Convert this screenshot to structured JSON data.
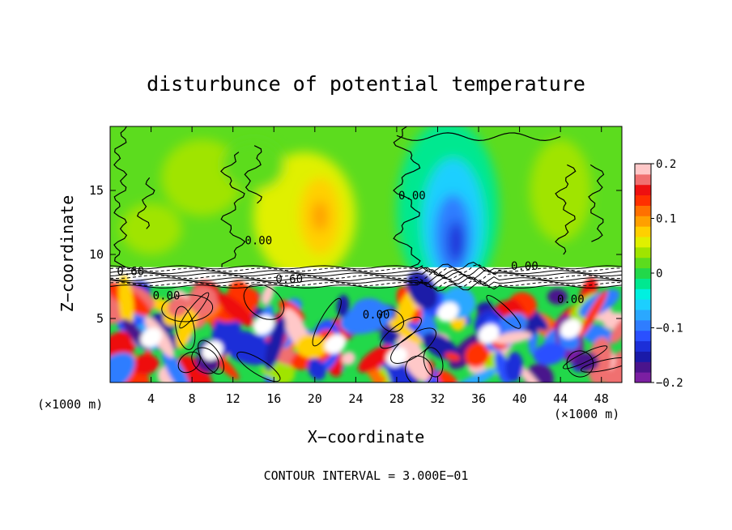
{
  "chart_data": {
    "type": "heatmap",
    "title": "disturbunce of potential temperature",
    "xlabel": "X−coordinate",
    "ylabel": "Z−coordinate",
    "x_unit_left": "(×1000 m)",
    "x_unit_right": "(×1000 m)",
    "xlim": [
      0,
      50
    ],
    "ylim": [
      0,
      20
    ],
    "x_ticks": [
      {
        "value": 4,
        "label": "4"
      },
      {
        "value": 8,
        "label": "8"
      },
      {
        "value": 12,
        "label": "12"
      },
      {
        "value": 16,
        "label": "16"
      },
      {
        "value": 20,
        "label": "20"
      },
      {
        "value": 24,
        "label": "24"
      },
      {
        "value": 28,
        "label": "28"
      },
      {
        "value": 32,
        "label": "32"
      },
      {
        "value": 36,
        "label": "36"
      },
      {
        "value": 40,
        "label": "40"
      },
      {
        "value": 44,
        "label": "44"
      },
      {
        "value": 48,
        "label": "48"
      }
    ],
    "y_ticks": [
      {
        "value": 5,
        "label": "5"
      },
      {
        "value": 10,
        "label": "10"
      },
      {
        "value": 15,
        "label": "15"
      }
    ],
    "colorbar": {
      "min": -0.2,
      "max": 0.2,
      "ticks": [
        {
          "value": 0.2,
          "label": "0.2"
        },
        {
          "value": 0.1,
          "label": "0.1"
        },
        {
          "value": 0,
          "label": "0"
        },
        {
          "value": -0.1,
          "label": "−0.1"
        },
        {
          "value": -0.2,
          "label": "−0.2"
        }
      ],
      "levels": [
        {
          "value": -0.2,
          "color": "#7b1fa2"
        },
        {
          "value": -0.18,
          "color": "#4a148c"
        },
        {
          "value": -0.16,
          "color": "#1a1aa8"
        },
        {
          "value": -0.14,
          "color": "#1c2fd8"
        },
        {
          "value": -0.12,
          "color": "#2a50ff"
        },
        {
          "value": -0.1,
          "color": "#2f7dff"
        },
        {
          "value": -0.08,
          "color": "#2aa8ff"
        },
        {
          "value": -0.06,
          "color": "#1ccfff"
        },
        {
          "value": -0.04,
          "color": "#00f0e0"
        },
        {
          "value": -0.02,
          "color": "#00e890"
        },
        {
          "value": 0,
          "color": "#22d84a"
        },
        {
          "value": 0.02,
          "color": "#5cdc1e"
        },
        {
          "value": 0.04,
          "color": "#a0e400"
        },
        {
          "value": 0.06,
          "color": "#e0f000"
        },
        {
          "value": 0.08,
          "color": "#ffd000"
        },
        {
          "value": 0.1,
          "color": "#ffa000"
        },
        {
          "value": 0.12,
          "color": "#ff7000"
        },
        {
          "value": 0.14,
          "color": "#ff3000"
        },
        {
          "value": 0.16,
          "color": "#ee1010"
        },
        {
          "value": 0.18,
          "color": "#f07070"
        },
        {
          "value": 0.2,
          "color": "#ffc8c8"
        }
      ]
    },
    "field_features": [
      {
        "name": "warm-anomaly",
        "x": 20.5,
        "z": 13,
        "value": 0.09
      },
      {
        "name": "cold-anomaly",
        "x": 33.5,
        "z": 11.5,
        "value": -0.14
      },
      {
        "name": "neutral-layer",
        "z_bottom": 7.5,
        "z_top": 9,
        "value": 0
      },
      {
        "name": "turbulent-layer",
        "z_bottom": 0,
        "z_top": 7.5,
        "value_range": [
          -0.2,
          0.2
        ]
      }
    ],
    "contour_labels": [
      {
        "x": 14.5,
        "z": 10.8,
        "text": "0.00"
      },
      {
        "x": 29.5,
        "z": 14.3,
        "text": "0.00"
      },
      {
        "x": 2.0,
        "z": 8.4,
        "text": "0.60"
      },
      {
        "x": 17.5,
        "z": 7.8,
        "text": "0.60"
      },
      {
        "x": 40.5,
        "z": 8.8,
        "text": "0.00"
      },
      {
        "x": 5.5,
        "z": 6.5,
        "text": "0.00"
      },
      {
        "x": 26.0,
        "z": 5.0,
        "text": "0.00"
      },
      {
        "x": 45.0,
        "z": 6.2,
        "text": "0.00"
      }
    ],
    "footer": "CONTOUR INTERVAL = 3.000E−01"
  }
}
